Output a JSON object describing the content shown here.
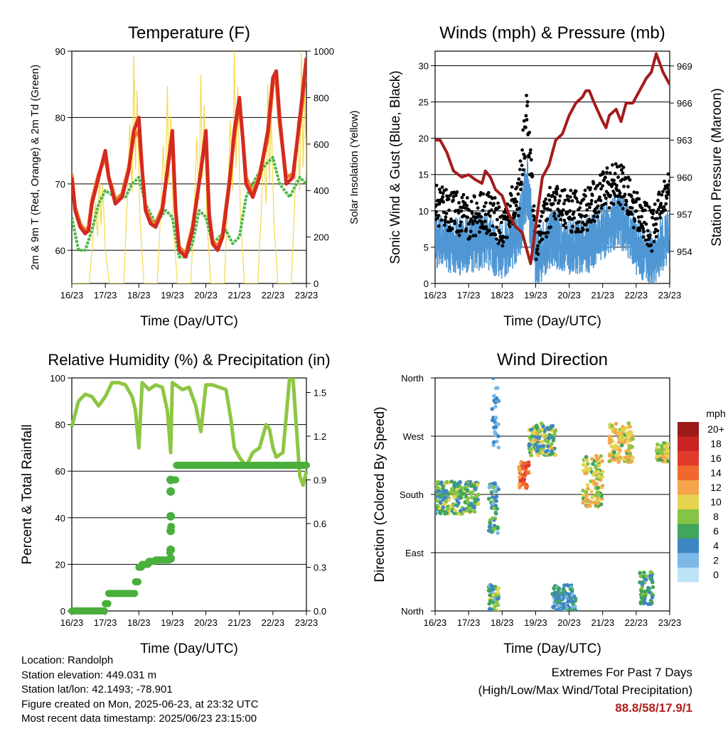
{
  "info": {
    "location": "Location: Randolph",
    "elevation": "Station elevation: 449.031 m",
    "latlon": "Station lat/lon: 42.1493; -78.901",
    "created": "Figure created on Mon, 2025-06-23, at 23:32 UTC",
    "recent": "Most recent data timestamp: 2025/06/23 23:15:00"
  },
  "extremes": {
    "title": "Extremes For Past 7 Days",
    "subtitle": "(High/Low/Max Wind/Total Precipitation)",
    "value": "88.8/58/17.9/1"
  },
  "chart_data": [
    {
      "type": "line",
      "title": "Temperature (F)",
      "xlabel": "Time (Day/UTC)",
      "ylabel": "2m & 9m T (Red, Orange) & 2m Td (Green)",
      "y2label": "Solar Insolation (Yellow)",
      "xticks": [
        "16/23",
        "17/23",
        "18/23",
        "19/23",
        "20/23",
        "21/23",
        "22/23",
        "23/23"
      ],
      "xlim": [
        0,
        7
      ],
      "ylim": [
        55,
        90
      ],
      "yticks": [
        60,
        70,
        80,
        90
      ],
      "y2lim": [
        0,
        1000
      ],
      "y2ticks": [
        0,
        200,
        400,
        600,
        800,
        1000
      ],
      "colors": {
        "t2m": "#d42a20",
        "t9m": "#f07f2a",
        "td": "#4db848",
        "solar": "#f5d94a"
      },
      "series": [
        {
          "key": "t2m",
          "x": [
            0,
            0.1,
            0.25,
            0.4,
            0.5,
            0.6,
            0.8,
            1.0,
            1.1,
            1.2,
            1.3,
            1.5,
            1.7,
            1.85,
            2.0,
            2.1,
            2.2,
            2.35,
            2.5,
            2.7,
            2.85,
            3.0,
            3.1,
            3.2,
            3.4,
            3.6,
            3.85,
            4.0,
            4.1,
            4.2,
            4.35,
            4.5,
            4.7,
            4.85,
            5.0,
            5.1,
            5.2,
            5.4,
            5.6,
            5.85,
            6.0,
            6.1,
            6.2,
            6.4,
            6.6,
            6.85,
            7.0
          ],
          "values": [
            71,
            66,
            63.5,
            62.5,
            63,
            67,
            71,
            75,
            71,
            69,
            67,
            68,
            72,
            78,
            80,
            72,
            66,
            64,
            63.5,
            66,
            72,
            78,
            66,
            60,
            59,
            63,
            72,
            78,
            65,
            61,
            60,
            62,
            70,
            78,
            83,
            77,
            70,
            68,
            71,
            78,
            86,
            87,
            80,
            70,
            71,
            82,
            89
          ]
        },
        {
          "key": "t9m",
          "x": [
            0,
            0.1,
            0.25,
            0.4,
            0.5,
            0.6,
            0.8,
            1.0,
            1.1,
            1.2,
            1.3,
            1.5,
            1.7,
            1.85,
            2.0,
            2.1,
            2.2,
            2.35,
            2.5,
            2.7,
            2.85,
            3.0,
            3.1,
            3.2,
            3.4,
            3.6,
            3.85,
            4.0,
            4.1,
            4.2,
            4.35,
            4.5,
            4.7,
            4.85,
            5.0,
            5.1,
            5.2,
            5.4,
            5.6,
            5.85,
            6.0,
            6.1,
            6.2,
            6.4,
            6.6,
            6.85,
            7.0
          ],
          "values": [
            71.5,
            66.5,
            64,
            63,
            63.5,
            67.5,
            71.5,
            74,
            71,
            69.5,
            67.5,
            68.5,
            72.5,
            77,
            78,
            72,
            66.5,
            64.5,
            64,
            66.5,
            72,
            77,
            66,
            60.5,
            59.5,
            63.5,
            72,
            77,
            65.5,
            61.5,
            60.5,
            62.5,
            70.5,
            77,
            82,
            77,
            71,
            68.5,
            71.5,
            77,
            85,
            86,
            79,
            71,
            71.5,
            81,
            88
          ]
        },
        {
          "key": "td",
          "x": [
            0,
            0.2,
            0.4,
            0.6,
            0.8,
            1.0,
            1.3,
            1.6,
            1.8,
            2.0,
            2.2,
            2.5,
            2.8,
            3.0,
            3.2,
            3.4,
            3.6,
            3.8,
            4.0,
            4.2,
            4.4,
            4.6,
            4.8,
            5.0,
            5.2,
            5.5,
            5.8,
            6.0,
            6.2,
            6.5,
            6.8,
            7.0
          ],
          "values": [
            65,
            60,
            60,
            63,
            67,
            69,
            68,
            68,
            70,
            71,
            67,
            64,
            66,
            65,
            59,
            59,
            61,
            66,
            65,
            61,
            62,
            63,
            61,
            62,
            68,
            71,
            73,
            74,
            70,
            68,
            71,
            70
          ]
        },
        {
          "key": "solar",
          "axis": "y2",
          "peaks": [
            [
              0.82,
              500
            ],
            [
              1.85,
              980
            ],
            [
              2.85,
              850
            ],
            [
              3.85,
              900
            ],
            [
              4.85,
              1000
            ],
            [
              5.85,
              860
            ],
            [
              6.85,
              1000
            ]
          ]
        }
      ]
    },
    {
      "type": "scatter",
      "title": "Winds (mph) & Pressure (mb)",
      "xlabel": "Time (Day/UTC)",
      "ylabel": "Sonic Wind & Gust (Blue, Black)",
      "y2label": "Station Pressure (Maroon)",
      "xticks": [
        "16/23",
        "17/23",
        "18/23",
        "19/23",
        "20/23",
        "21/23",
        "22/23",
        "23/23"
      ],
      "xlim": [
        0,
        7
      ],
      "ylim": [
        0,
        32
      ],
      "yticks": [
        0,
        5,
        10,
        15,
        20,
        25,
        30
      ],
      "y2lim": [
        951.4,
        970.2
      ],
      "y2ticks": [
        954,
        957,
        960,
        963,
        966,
        969
      ],
      "colors": {
        "wind": "#4f97d4",
        "gust": "#000000",
        "pressure": "#a31c1c"
      },
      "series": [
        {
          "key": "wind",
          "mean_envelope_x": [
            0,
            0.5,
            1,
            1.5,
            2,
            2.5,
            2.75,
            3,
            3.5,
            4,
            4.5,
            5,
            5.5,
            6,
            6.5,
            7
          ],
          "mean": [
            6,
            5,
            5,
            6,
            4,
            7,
            13,
            3,
            6,
            5,
            5,
            7,
            9,
            5,
            3,
            7
          ],
          "spread": [
            3,
            3,
            3,
            3,
            3,
            3,
            4,
            3,
            3,
            3,
            3,
            3,
            3,
            3,
            3,
            3
          ]
        },
        {
          "key": "gust",
          "mean_envelope_x": [
            0,
            0.5,
            1,
            1.5,
            2,
            2.5,
            2.75,
            3,
            3.5,
            4,
            4.5,
            5,
            5.5,
            6,
            6.5,
            7
          ],
          "mean": [
            11,
            10,
            9,
            10,
            8,
            12,
            24,
            6,
            11,
            10,
            10,
            13,
            14,
            10,
            7,
            15
          ],
          "spread": [
            3,
            3,
            3,
            3,
            3,
            3,
            4,
            3,
            3,
            3,
            3,
            3,
            3,
            3,
            3,
            3
          ]
        },
        {
          "key": "pressure",
          "axis": "y2",
          "x": [
            0,
            0.15,
            0.35,
            0.55,
            0.8,
            1.0,
            1.2,
            1.4,
            1.5,
            1.65,
            1.8,
            2.0,
            2.2,
            2.4,
            2.6,
            2.75,
            2.85,
            3.0,
            3.2,
            3.4,
            3.6,
            3.8,
            4.0,
            4.2,
            4.4,
            4.5,
            4.6,
            4.75,
            5.0,
            5.1,
            5.2,
            5.4,
            5.55,
            5.7,
            5.9,
            6.1,
            6.3,
            6.45,
            6.6,
            6.8,
            6.9,
            7.0
          ],
          "values": [
            963,
            963,
            962,
            960.5,
            960,
            960.2,
            959.8,
            959.5,
            960.5,
            960,
            959,
            958.5,
            957,
            956,
            955.5,
            954,
            953,
            956,
            960,
            961,
            963,
            963.5,
            965,
            966,
            966.5,
            967,
            967,
            966,
            964.5,
            964,
            965,
            965.5,
            964.5,
            966,
            966,
            967,
            968,
            968.5,
            970,
            968.5,
            968,
            967.5
          ]
        }
      ]
    },
    {
      "type": "line",
      "title": "Relative Humidity (%) & Precipitation (in)",
      "xlabel": "Time (Day/UTC)",
      "ylabel": "Percent & Total Rainfall",
      "xticks": [
        "16/23",
        "17/23",
        "18/23",
        "19/23",
        "20/23",
        "21/23",
        "22/23",
        "23/23"
      ],
      "xlim": [
        0,
        7
      ],
      "ylim": [
        0,
        100
      ],
      "yticks": [
        0,
        20,
        40,
        60,
        80,
        100
      ],
      "y2lim": [
        0,
        1.6
      ],
      "y2ticks": [
        "0.0",
        "0.3",
        "0.6",
        "0.9",
        "1.2",
        "1.5"
      ],
      "colors": {
        "rh": "#8ec643",
        "precip": "#4aaf3c"
      },
      "series": [
        {
          "key": "rh",
          "x": [
            0,
            0.2,
            0.4,
            0.6,
            0.8,
            1.0,
            1.2,
            1.4,
            1.6,
            1.8,
            1.9,
            2.0,
            2.1,
            2.3,
            2.5,
            2.7,
            2.85,
            2.95,
            3.0,
            3.1,
            3.3,
            3.5,
            3.7,
            3.85,
            4.0,
            4.2,
            4.4,
            4.6,
            4.75,
            4.85,
            5.0,
            5.2,
            5.4,
            5.6,
            5.8,
            5.9,
            6.0,
            6.1,
            6.3,
            6.5,
            6.6,
            6.8,
            6.9,
            7.0
          ],
          "values": [
            79,
            90,
            93,
            92,
            88,
            92,
            98,
            98,
            97,
            92,
            86,
            70,
            98,
            95,
            97,
            96,
            86,
            68,
            98,
            97,
            95,
            96,
            88,
            77,
            97,
            97,
            96,
            95,
            82,
            70,
            66,
            62,
            68,
            70,
            80,
            78,
            70,
            66,
            68,
            100,
            100,
            58,
            54,
            60
          ]
        },
        {
          "key": "precip",
          "axis": "y2",
          "x": [
            0,
            0.5,
            0.9,
            1.0,
            1.1,
            1.2,
            1.5,
            1.8,
            1.9,
            2.0,
            2.1,
            2.3,
            2.5,
            2.7,
            2.8,
            2.9,
            2.92,
            2.95,
            3.0,
            3.1,
            3.5,
            4.0,
            5.0,
            6.0,
            7.0
          ],
          "values": [
            0,
            0,
            0,
            0.05,
            0.12,
            0.12,
            0.12,
            0.12,
            0.2,
            0.3,
            0.32,
            0.34,
            0.35,
            0.35,
            0.35,
            0.35,
            0.4,
            0.58,
            0.9,
            1.0,
            1.0,
            1.0,
            1.0,
            1.0,
            1.0
          ]
        }
      ]
    },
    {
      "type": "scatter",
      "title": "Wind Direction",
      "xlabel": "Time (Day/UTC)",
      "ylabel": "Direction (Colored By Speed)",
      "xticks": [
        "16/23",
        "17/23",
        "18/23",
        "19/23",
        "20/23",
        "21/23",
        "22/23",
        "23/23"
      ],
      "xlim": [
        0,
        7
      ],
      "yticks": [
        "North",
        "East",
        "South",
        "West",
        "North"
      ],
      "ylim": [
        0,
        360
      ],
      "legend": {
        "title": "mph",
        "labels": [
          "20+",
          "18",
          "16",
          "14",
          "12",
          "10",
          "8",
          "6",
          "4",
          "2",
          "0"
        ],
        "colors": [
          "#9c1a1a",
          "#c92323",
          "#e23a2a",
          "#f0682e",
          "#f5a54b",
          "#e6d34f",
          "#86c446",
          "#41a55b",
          "#3e86c4",
          "#7db8e6",
          "#bde3f7"
        ]
      },
      "clusters": [
        {
          "x": [
            0,
            1.3
          ],
          "dir": [
            150,
            200
          ],
          "speed": [
            3,
            10
          ]
        },
        {
          "x": [
            1.6,
            1.9
          ],
          "dir": [
            120,
            200
          ],
          "speed": [
            2,
            8
          ]
        },
        {
          "x": [
            1.6,
            1.9
          ],
          "dir": [
            0,
            40
          ],
          "speed": [
            2,
            10
          ]
        },
        {
          "x": [
            1.7,
            1.9
          ],
          "dir": [
            250,
            360
          ],
          "speed": [
            1,
            5
          ]
        },
        {
          "x": [
            2.5,
            2.8
          ],
          "dir": [
            190,
            230
          ],
          "speed": [
            12,
            17
          ]
        },
        {
          "x": [
            2.8,
            3.6
          ],
          "dir": [
            240,
            290
          ],
          "speed": [
            3,
            12
          ]
        },
        {
          "x": [
            3.5,
            4.2
          ],
          "dir": [
            0,
            40
          ],
          "speed": [
            2,
            6
          ]
        },
        {
          "x": [
            4.4,
            5.0
          ],
          "dir": [
            160,
            240
          ],
          "speed": [
            6,
            13
          ]
        },
        {
          "x": [
            5.2,
            5.9
          ],
          "dir": [
            230,
            290
          ],
          "speed": [
            6,
            13
          ]
        },
        {
          "x": [
            6.1,
            6.5
          ],
          "dir": [
            10,
            60
          ],
          "speed": [
            3,
            8
          ]
        },
        {
          "x": [
            6.6,
            7.0
          ],
          "dir": [
            230,
            260
          ],
          "speed": [
            6,
            12
          ]
        }
      ]
    }
  ]
}
